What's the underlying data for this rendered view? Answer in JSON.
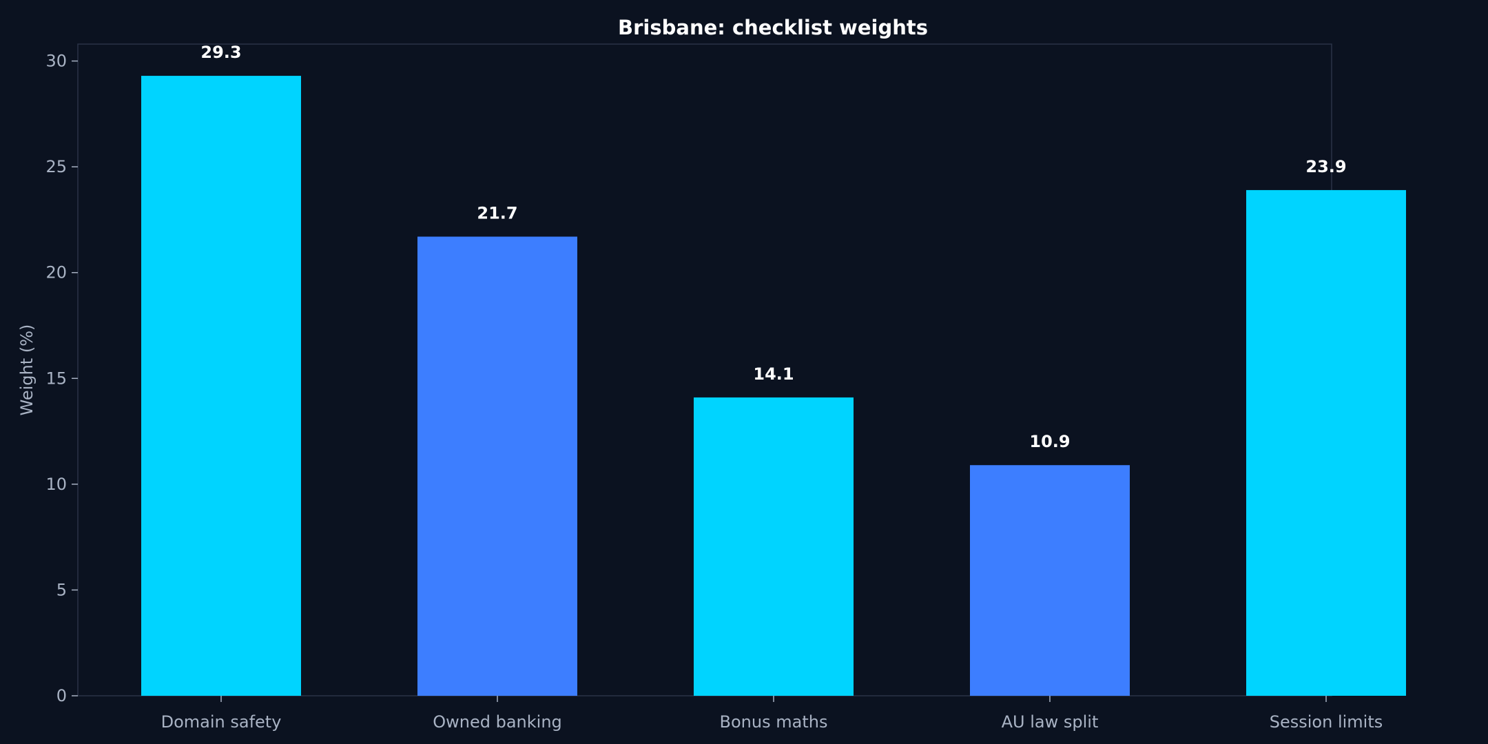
{
  "chart_data": {
    "type": "bar",
    "title": "Brisbane: checklist weights",
    "xlabel": "",
    "ylabel": "Weight (%)",
    "categories": [
      "Domain safety",
      "Owned banking",
      "Bonus maths",
      "AU law split",
      "Session limits"
    ],
    "values": [
      29.3,
      21.7,
      14.1,
      10.9,
      23.9
    ],
    "value_labels": [
      "29.3",
      "21.7",
      "14.1",
      "10.9",
      "23.9"
    ],
    "bar_colors": [
      "#00d4ff",
      "#3d7eff",
      "#00d4ff",
      "#3d7eff",
      "#00d4ff"
    ],
    "ylim": [
      0,
      30.8
    ],
    "yticks": [
      0,
      5,
      10,
      15,
      20,
      25,
      30
    ],
    "ytick_labels": [
      "0",
      "5",
      "10",
      "15",
      "20",
      "25",
      "30"
    ],
    "grid": false,
    "legend": "none"
  },
  "colors": {
    "background": "#0b1220",
    "frame": "#2a3347",
    "tick_label": "#a9b3c4",
    "title": "#ffffff",
    "value_label": "#ffffff"
  }
}
